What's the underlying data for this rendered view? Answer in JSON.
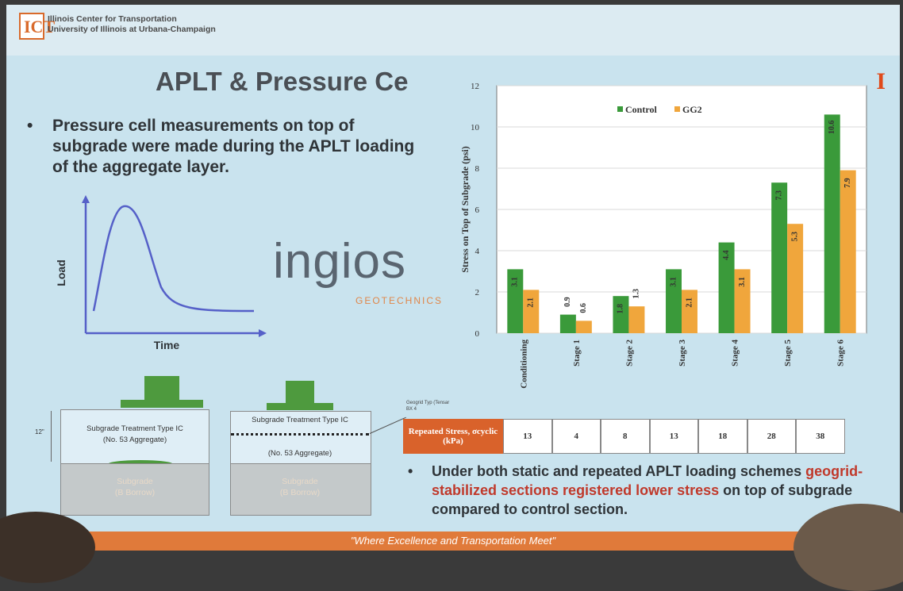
{
  "header": {
    "logo_text": "ICT",
    "institution_line1": "Illinois Center for Transportation",
    "institution_line2": "University of Illinois at Urbana-Champaign",
    "i_mark": "I"
  },
  "slide": {
    "title": "APLT & Pressure Ce",
    "bullet1_marker": "•",
    "bullet1": "Pressure cell measurements on top of subgrade were made during the APLT loading of the aggregate layer.",
    "bullet2_marker": "•",
    "bullet2_pre": "Under both static and repeated APLT loading schemes",
    "bullet2_highlight": "geogrid-stabilized sections registered lower stress",
    "bullet2_post": "on top of subgrade compared to control section.",
    "footer": "\"Where Excellence and Transportation Meet\""
  },
  "load_graph": {
    "ylabel": "Load",
    "xlabel": "Time"
  },
  "sponsor": {
    "name": "ingios",
    "sub": "GEOTECHNICS"
  },
  "diagrams": {
    "thickness": "12\"",
    "left_treatment": "Subgrade Treatment Type IC",
    "left_aggregate": "(No. 53 Aggregate)",
    "left_subgrade": "Subgrade",
    "left_borrow": "(B Borrow)",
    "right_treatment": "Subgrade Treatment Type IC",
    "right_aggregate": "(No. 53 Aggregate)",
    "right_subgrade": "Subgrade",
    "right_borrow": "(B Borrow)",
    "geogrid_label": "Geogrid Typ (Tensar BX 4"
  },
  "stress_table": {
    "header": "Repeated Stress, σcyclic (kPa)",
    "values": [
      "13",
      "4",
      "8",
      "13",
      "18",
      "28",
      "38"
    ]
  },
  "colors": {
    "control": "#3a9a3a",
    "gg2": "#f0a63c",
    "accent": "#e07a3a"
  },
  "chart_data": {
    "type": "bar",
    "categories": [
      "Conditioning",
      "Stage 1",
      "Stage 2",
      "Stage 3",
      "Stage 4",
      "Stage 5",
      "Stage 6"
    ],
    "series": [
      {
        "name": "Control",
        "values": [
          3.1,
          0.9,
          1.8,
          3.1,
          4.4,
          7.3,
          10.6
        ]
      },
      {
        "name": "GG2",
        "values": [
          2.1,
          0.6,
          1.3,
          2.1,
          3.1,
          5.3,
          7.9
        ]
      }
    ],
    "ylabel": "Stress on Top of Subgrade (psi)",
    "ylim": [
      0,
      12
    ],
    "yticks": [
      0,
      2,
      4,
      6,
      8,
      10,
      12
    ],
    "legend": "top",
    "grid": true
  }
}
